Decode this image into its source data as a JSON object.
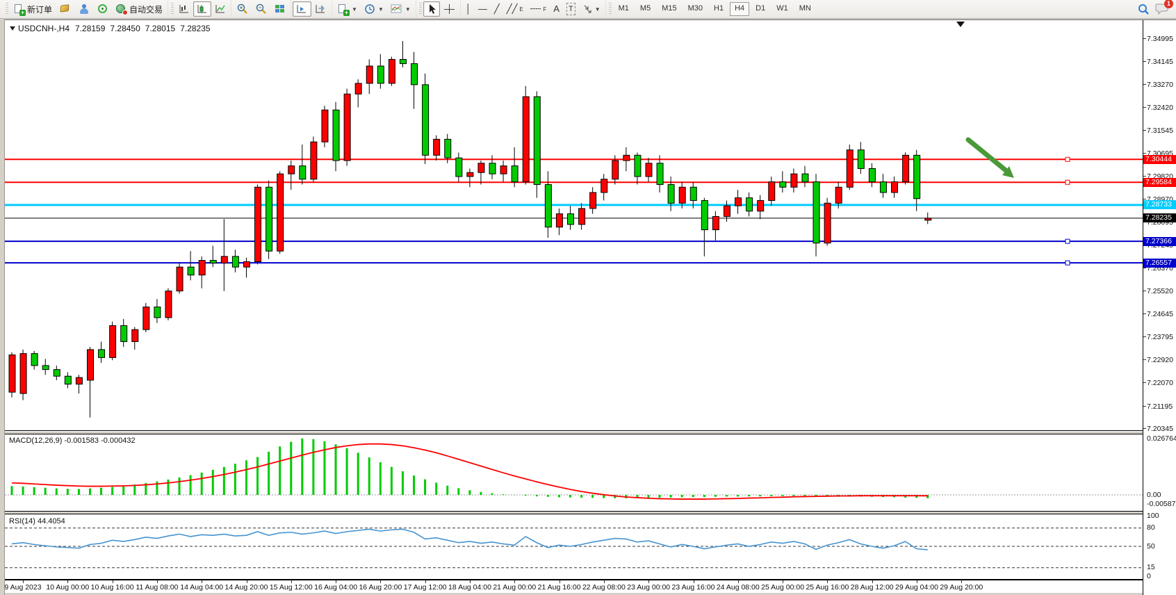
{
  "window": {
    "badge_count": "1"
  },
  "toolbar": {
    "new_order_label": "新订单",
    "auto_trading_label": "自动交易",
    "timeframes": [
      "M1",
      "M5",
      "M15",
      "M30",
      "H1",
      "H4",
      "D1",
      "W1",
      "MN"
    ],
    "active_timeframe": "H4",
    "text_tool_label": "A",
    "label_tool_label": "T",
    "channel_tool_suffix": "E",
    "fibo_tool_suffix": "F"
  },
  "chart": {
    "symbol_period": "USDCNH-,H4",
    "open": "7.28159",
    "high": "7.28450",
    "low": "7.28015",
    "close": "7.28235",
    "macd_header": "MACD(12,26,9) -0.001583 -0.000432",
    "rsi_header": "RSI(14) 44.4054"
  },
  "colors": {
    "bull": "#FF0000",
    "bear": "#00CC00",
    "wick": "#000000",
    "macd_hist": "#00CC00",
    "macd_signal": "#FF0000",
    "rsi_line": "#4593D0",
    "level_red": "#FF0000",
    "level_blue": "#0000CC",
    "level_cyan": "#00CCFF",
    "current_line": "#000000",
    "arrow": "#4A9A3A"
  },
  "chart_data": {
    "type": "candlestick",
    "symbol": "USDCNH-",
    "timeframe": "H4",
    "price_ticks": [
      "7.34995",
      "7.34145",
      "7.33270",
      "7.32420",
      "7.31545",
      "7.30695",
      "7.29820",
      "7.28970",
      "7.28095",
      "7.27245",
      "7.26370",
      "7.25520",
      "7.24645",
      "7.23795",
      "7.22920",
      "7.22070",
      "7.21195",
      "7.20345"
    ],
    "time_labels": [
      "9 Aug 2023",
      "10 Aug 00:00",
      "10 Aug 16:00",
      "11 Aug 08:00",
      "14 Aug 04:00",
      "14 Aug 20:00",
      "15 Aug 12:00",
      "16 Aug 04:00",
      "16 Aug 20:00",
      "17 Aug 12:00",
      "18 Aug 04:00",
      "21 Aug 00:00",
      "21 Aug 16:00",
      "22 Aug 08:00",
      "23 Aug 00:00",
      "23 Aug 16:00",
      "24 Aug 08:00",
      "25 Aug 00:00",
      "25 Aug 16:00",
      "28 Aug 12:00",
      "29 Aug 04:00",
      "29 Aug 20:00"
    ],
    "candles": [
      [
        7.217,
        7.232,
        7.215,
        7.231
      ],
      [
        7.2165,
        7.233,
        7.214,
        7.2315
      ],
      [
        7.2315,
        7.2325,
        7.2255,
        7.227
      ],
      [
        7.227,
        7.2295,
        7.2235,
        7.2255
      ],
      [
        7.2255,
        7.227,
        7.2215,
        7.223
      ],
      [
        7.223,
        7.2245,
        7.2185,
        7.22
      ],
      [
        7.22,
        7.2235,
        7.2165,
        7.2225
      ],
      [
        7.2215,
        7.234,
        7.2075,
        7.233
      ],
      [
        7.233,
        7.236,
        7.228,
        7.23
      ],
      [
        7.23,
        7.2435,
        7.229,
        7.242
      ],
      [
        7.242,
        7.2445,
        7.234,
        7.236
      ],
      [
        7.236,
        7.2415,
        7.233,
        7.2405
      ],
      [
        7.2405,
        7.2505,
        7.2395,
        7.249
      ],
      [
        7.249,
        7.252,
        7.243,
        7.245
      ],
      [
        7.245,
        7.256,
        7.244,
        7.255
      ],
      [
        7.255,
        7.2655,
        7.254,
        7.264
      ],
      [
        7.264,
        7.27,
        7.259,
        7.261
      ],
      [
        7.261,
        7.268,
        7.256,
        7.2665
      ],
      [
        7.2665,
        7.272,
        7.264,
        7.2655
      ],
      [
        7.2655,
        7.282,
        7.255,
        7.268
      ],
      [
        7.268,
        7.2705,
        7.262,
        7.264
      ],
      [
        7.264,
        7.2675,
        7.26,
        7.266
      ],
      [
        7.266,
        7.295,
        7.265,
        7.294
      ],
      [
        7.294,
        7.2965,
        7.267,
        7.27
      ],
      [
        7.27,
        7.3,
        7.269,
        7.299
      ],
      [
        7.299,
        7.304,
        7.293,
        7.302
      ],
      [
        7.302,
        7.31,
        7.295,
        7.297
      ],
      [
        7.297,
        7.313,
        7.296,
        7.311
      ],
      [
        7.311,
        7.3246,
        7.309,
        7.323
      ],
      [
        7.323,
        7.326,
        7.3,
        7.304
      ],
      [
        7.304,
        7.331,
        7.302,
        7.329
      ],
      [
        7.329,
        7.3345,
        7.324,
        7.333
      ],
      [
        7.333,
        7.342,
        7.329,
        7.3395
      ],
      [
        7.3395,
        7.344,
        7.331,
        7.333
      ],
      [
        7.333,
        7.343,
        7.332,
        7.342
      ],
      [
        7.342,
        7.3489,
        7.339,
        7.3404
      ],
      [
        7.3404,
        7.3448,
        7.3234,
        7.3325
      ],
      [
        7.3325,
        7.3367,
        7.3027,
        7.306
      ],
      [
        7.306,
        7.3135,
        7.304,
        7.312
      ],
      [
        7.312,
        7.314,
        7.303,
        7.305
      ],
      [
        7.305,
        7.307,
        7.296,
        7.298
      ],
      [
        7.298,
        7.301,
        7.294,
        7.2995
      ],
      [
        7.2995,
        7.304,
        7.295,
        7.303
      ],
      [
        7.303,
        7.306,
        7.297,
        7.299
      ],
      [
        7.299,
        7.304,
        7.296,
        7.302
      ],
      [
        7.302,
        7.309,
        7.294,
        7.296
      ],
      [
        7.296,
        7.332,
        7.295,
        7.328
      ],
      [
        7.328,
        7.33,
        7.29,
        7.295
      ],
      [
        7.295,
        7.3,
        7.275,
        7.279
      ],
      [
        7.279,
        7.286,
        7.276,
        7.284
      ],
      [
        7.284,
        7.287,
        7.278,
        7.28
      ],
      [
        7.28,
        7.288,
        7.278,
        7.286
      ],
      [
        7.286,
        7.294,
        7.284,
        7.292
      ],
      [
        7.292,
        7.299,
        7.289,
        7.297
      ],
      [
        7.297,
        7.306,
        7.295,
        7.304
      ],
      [
        7.304,
        7.309,
        7.3,
        7.306
      ],
      [
        7.306,
        7.307,
        7.295,
        7.298
      ],
      [
        7.298,
        7.305,
        7.296,
        7.303
      ],
      [
        7.303,
        7.306,
        7.292,
        7.295
      ],
      [
        7.295,
        7.298,
        7.285,
        7.288
      ],
      [
        7.288,
        7.296,
        7.286,
        7.294
      ],
      [
        7.294,
        7.296,
        7.286,
        7.289
      ],
      [
        7.289,
        7.29,
        7.268,
        7.278
      ],
      [
        7.278,
        7.285,
        7.274,
        7.283
      ],
      [
        7.283,
        7.289,
        7.281,
        7.287
      ],
      [
        7.287,
        7.293,
        7.284,
        7.29
      ],
      [
        7.29,
        7.292,
        7.283,
        7.285
      ],
      [
        7.285,
        7.291,
        7.282,
        7.289
      ],
      [
        7.289,
        7.298,
        7.287,
        7.296
      ],
      [
        7.296,
        7.3,
        7.292,
        7.294
      ],
      [
        7.294,
        7.301,
        7.292,
        7.299
      ],
      [
        7.299,
        7.302,
        7.294,
        7.296
      ],
      [
        7.296,
        7.299,
        7.268,
        7.273
      ],
      [
        7.273,
        7.29,
        7.272,
        7.288
      ],
      [
        7.288,
        7.296,
        7.286,
        7.294
      ],
      [
        7.294,
        7.31,
        7.293,
        7.308
      ],
      [
        7.308,
        7.311,
        7.299,
        7.301
      ],
      [
        7.301,
        7.303,
        7.294,
        7.296
      ],
      [
        7.296,
        7.299,
        7.29,
        7.292
      ],
      [
        7.292,
        7.298,
        7.29,
        7.296
      ],
      [
        7.296,
        7.3071,
        7.295,
        7.306
      ],
      [
        7.306,
        7.308,
        7.285,
        7.2897
      ],
      [
        7.28159,
        7.2845,
        7.28015,
        7.28235
      ]
    ],
    "hlines": [
      {
        "price": 7.30444,
        "label": "7.30444",
        "color": "#FF0000",
        "type": "resistance",
        "handle": true
      },
      {
        "price": 7.29584,
        "label": "7.29584",
        "color": "#FF0000",
        "type": "resistance",
        "handle": true
      },
      {
        "price": 7.28733,
        "label": "7.28733",
        "color": "#00CCFF",
        "type": "level",
        "handle": false
      },
      {
        "price": 7.28235,
        "label": "7.28235",
        "color": "#000000",
        "type": "current-price",
        "handle": false
      },
      {
        "price": 7.27366,
        "label": "7.27366",
        "color": "#0000CC",
        "type": "support",
        "handle": true
      },
      {
        "price": 7.26557,
        "label": "7.26557",
        "color": "#0000CC",
        "type": "support",
        "handle": true
      }
    ],
    "macd": {
      "params": "12,26,9",
      "value": -0.001583,
      "signal_value": -0.000432,
      "axis_labels": [
        "0.026764",
        "0.00",
        "-0.005872"
      ],
      "histogram": [
        0.0042,
        0.004,
        0.0037,
        0.0034,
        0.0031,
        0.0029,
        0.0028,
        0.0031,
        0.0034,
        0.0038,
        0.0043,
        0.0049,
        0.0056,
        0.0064,
        0.0073,
        0.0083,
        0.0094,
        0.0106,
        0.0119,
        0.0133,
        0.0148,
        0.0164,
        0.018,
        0.0205,
        0.023,
        0.0252,
        0.0268,
        0.0265,
        0.0255,
        0.024,
        0.0222,
        0.02,
        0.0178,
        0.0155,
        0.0133,
        0.0112,
        0.0092,
        0.0074,
        0.0058,
        0.0044,
        0.0032,
        0.0022,
        0.0014,
        0.0008,
        0.0003,
        -0.0001,
        -0.0004,
        -0.0007,
        -0.0009,
        -0.0011,
        -0.0012,
        -0.0013,
        -0.0014,
        -0.0015,
        -0.0016,
        -0.0016,
        -0.0015,
        -0.0014,
        -0.0013,
        -0.0012,
        -0.0011,
        -0.001,
        -0.001,
        -0.0009,
        -0.0008,
        -0.0008,
        -0.0007,
        -0.0007,
        -0.0006,
        -0.0006,
        -0.0006,
        -0.0007,
        -0.0008,
        -0.0009,
        -0.0009,
        -0.0008,
        -0.0008,
        -0.0009,
        -0.001,
        -0.0011,
        -0.0013,
        -0.0014,
        -0.001583
      ],
      "signal": [
        0.0057,
        0.0055,
        0.0052,
        0.0049,
        0.0046,
        0.0044,
        0.0042,
        0.0041,
        0.0041,
        0.0042,
        0.0043,
        0.0045,
        0.0048,
        0.0052,
        0.0057,
        0.0063,
        0.007,
        0.0078,
        0.0087,
        0.0097,
        0.0108,
        0.012,
        0.0133,
        0.0147,
        0.0161,
        0.0175,
        0.0189,
        0.0202,
        0.0214,
        0.0225,
        0.0233,
        0.0239,
        0.0242,
        0.0242,
        0.0239,
        0.0233,
        0.0224,
        0.0213,
        0.02,
        0.0185,
        0.0169,
        0.0153,
        0.0137,
        0.0121,
        0.0105,
        0.009,
        0.0076,
        0.0062,
        0.0049,
        0.0037,
        0.0026,
        0.0016,
        0.0008,
        0.0001,
        -0.0005,
        -0.001,
        -0.0013,
        -0.0016,
        -0.0018,
        -0.0019,
        -0.002,
        -0.002,
        -0.002,
        -0.0019,
        -0.0018,
        -0.0017,
        -0.0015,
        -0.0014,
        -0.0012,
        -0.0011,
        -0.0009,
        -0.0008,
        -0.0007,
        -0.0006,
        -0.0005,
        -0.0005,
        -0.0004,
        -0.0004,
        -0.0004,
        -0.0004,
        -0.0004,
        -0.0004,
        -0.000432
      ]
    },
    "rsi": {
      "period": 14,
      "value": 44.4054,
      "axis_labels": [
        "100",
        "80",
        "50",
        "15",
        "0"
      ],
      "levels": [
        80,
        50,
        15
      ],
      "values": [
        54,
        56,
        53,
        51,
        49,
        48,
        47,
        53,
        55,
        60,
        58,
        61,
        65,
        63,
        67,
        70,
        66,
        69,
        68,
        70,
        67,
        68,
        74,
        68,
        72,
        73,
        70,
        72,
        75,
        71,
        74,
        76,
        78,
        75,
        77,
        78,
        73,
        62,
        64,
        60,
        56,
        58,
        55,
        57,
        54,
        52,
        66,
        56,
        48,
        52,
        50,
        53,
        57,
        60,
        63,
        62,
        57,
        59,
        54,
        49,
        53,
        50,
        46,
        49,
        52,
        54,
        50,
        53,
        57,
        55,
        58,
        54,
        45,
        52,
        56,
        61,
        54,
        50,
        47,
        51,
        58,
        46,
        44.4054
      ]
    },
    "annotation": {
      "type": "arrow",
      "direction": "down-right",
      "color": "#4A9A3A"
    }
  }
}
